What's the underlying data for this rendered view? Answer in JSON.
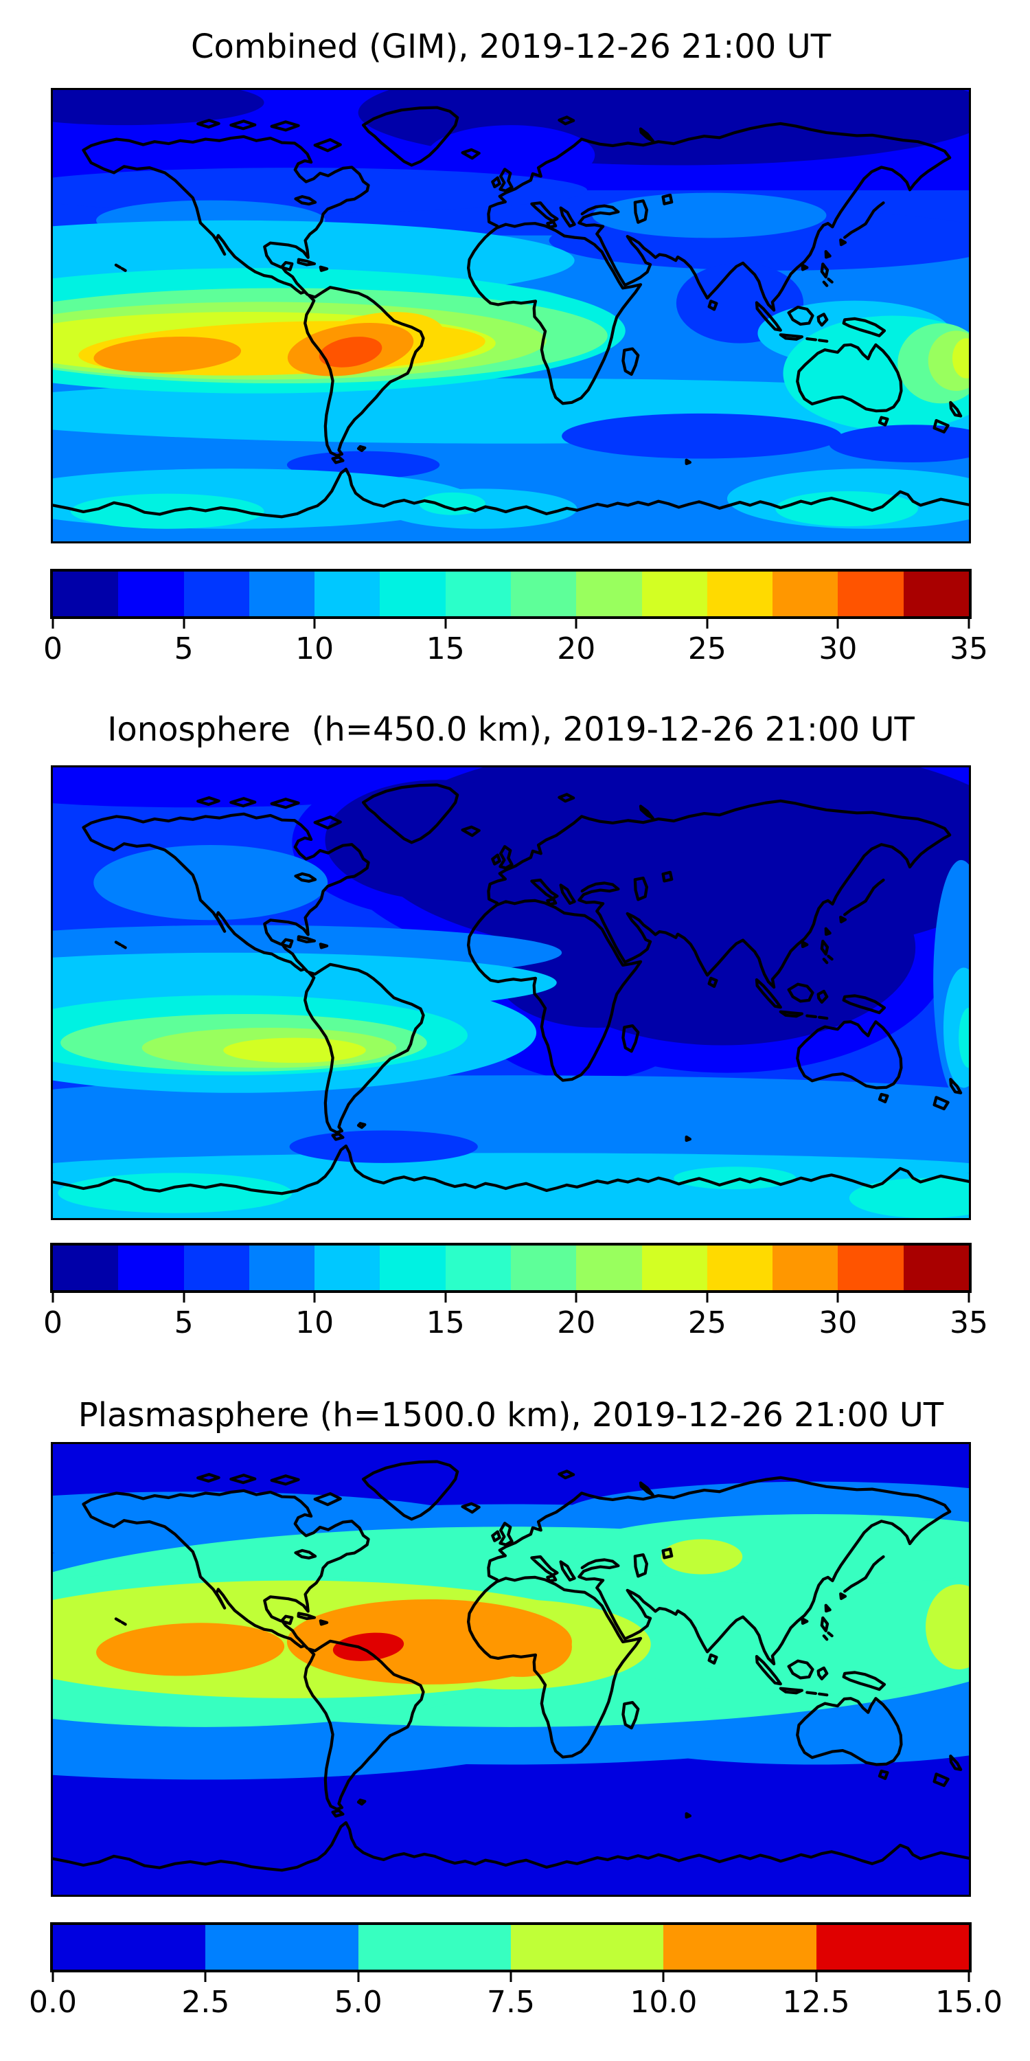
{
  "figure": {
    "background": "#ffffff",
    "colormap": "jet"
  },
  "panels": [
    {
      "id": "combined",
      "title": "Combined (GIM), 2019-12-26 21:00 UT",
      "colorbar": {
        "min": 0,
        "max": 35,
        "n_bands": 14,
        "tick_values": [
          0,
          5,
          10,
          15,
          20,
          25,
          30,
          35
        ],
        "tick_labels": [
          "0",
          "5",
          "10",
          "15",
          "20",
          "25",
          "30",
          "35"
        ],
        "band_colors": [
          "#0000a9",
          "#0000fc",
          "#0037ff",
          "#0080ff",
          "#00c8ff",
          "#00f2e2",
          "#2bffc9",
          "#5eff99",
          "#99ff5e",
          "#d3ff23",
          "#ffda00",
          "#ff9700",
          "#ff5400",
          "#a90000"
        ]
      }
    },
    {
      "id": "ionosphere",
      "title": "Ionosphere  (h=450.0 km), 2019-12-26 21:00 UT",
      "colorbar": {
        "min": 0,
        "max": 35,
        "n_bands": 14,
        "tick_values": [
          0,
          5,
          10,
          15,
          20,
          25,
          30,
          35
        ],
        "tick_labels": [
          "0",
          "5",
          "10",
          "15",
          "20",
          "25",
          "30",
          "35"
        ],
        "band_colors": [
          "#0000a9",
          "#0000fc",
          "#0037ff",
          "#0080ff",
          "#00c8ff",
          "#00f2e2",
          "#2bffc9",
          "#5eff99",
          "#99ff5e",
          "#d3ff23",
          "#ffda00",
          "#ff9700",
          "#ff5400",
          "#a90000"
        ]
      }
    },
    {
      "id": "plasmasphere",
      "title": "Plasmasphere (h=1500.0 km), 2019-12-26 21:00 UT",
      "colorbar": {
        "min": 0,
        "max": 15,
        "n_bands": 6,
        "tick_values": [
          0,
          2.5,
          5,
          7.5,
          10,
          12.5,
          15
        ],
        "tick_labels": [
          "0.0",
          "2.5",
          "5.0",
          "7.5",
          "10.0",
          "12.5",
          "15.0"
        ],
        "band_colors": [
          "#0000e0",
          "#0080ff",
          "#37ffc0",
          "#c0ff37",
          "#ff9700",
          "#e00000"
        ]
      }
    }
  ],
  "chart_data": [
    {
      "type": "heatmap",
      "title": "Combined (GIM), 2019-12-26 21:00 UT",
      "projection": "equirectangular world map with coastlines",
      "lon_range": [
        -180,
        180
      ],
      "lat_range": [
        -90,
        90
      ],
      "colormap": "jet",
      "value_min": 0,
      "value_max": 35,
      "contour_step": 2.5,
      "colorbar_ticks": [
        0,
        5,
        10,
        15,
        20,
        25,
        30,
        35
      ],
      "features": [
        {
          "name": "equatorial-anomaly-peak",
          "lon": -64,
          "lat": -16,
          "value_range": [
            30,
            32.5
          ]
        },
        {
          "name": "pacific-equatorial-band",
          "lon_range": [
            -170,
            -30
          ],
          "lat_range": [
            -30,
            2
          ],
          "value_range": [
            20,
            30
          ]
        },
        {
          "name": "atlantic-equatorial-enhancement",
          "lon": -8,
          "lat": -6,
          "value_range": [
            15,
            20
          ]
        },
        {
          "name": "west-pacific-enhancement",
          "lon": 172,
          "lat": -18,
          "value_range": [
            15,
            25
          ]
        },
        {
          "name": "arctic-minimum",
          "lat_range": [
            60,
            90
          ],
          "value_range": [
            0,
            5
          ]
        },
        {
          "name": "southern-ocean",
          "lat_range": [
            -65,
            -40
          ],
          "value_range": [
            5,
            10
          ]
        }
      ]
    },
    {
      "type": "heatmap",
      "title": "Ionosphere  (h=450.0 km), 2019-12-26 21:00 UT",
      "projection": "equirectangular world map with coastlines",
      "lon_range": [
        -180,
        180
      ],
      "lat_range": [
        -90,
        90
      ],
      "colormap": "jet",
      "value_min": 0,
      "value_max": 35,
      "contour_step": 2.5,
      "colorbar_ticks": [
        0,
        5,
        10,
        15,
        20,
        25,
        30,
        35
      ],
      "features": [
        {
          "name": "southeast-pacific-peak",
          "lon": -85,
          "lat": -23,
          "value_range": [
            20,
            25
          ]
        },
        {
          "name": "tropical-band",
          "lon_range": [
            -180,
            -20
          ],
          "lat_range": [
            -35,
            -5
          ],
          "value_range": [
            10,
            20
          ]
        },
        {
          "name": "eurasia-africa-minimum",
          "lon_range": [
            -30,
            150
          ],
          "lat_range": [
            -10,
            90
          ],
          "value_range": [
            0,
            2.5
          ]
        },
        {
          "name": "southern-ocean",
          "lat_range": [
            -65,
            -40
          ],
          "value_range": [
            5,
            10
          ]
        }
      ]
    },
    {
      "type": "heatmap",
      "title": "Plasmasphere (h=1500.0 km), 2019-12-26 21:00 UT",
      "projection": "equirectangular world map with coastlines",
      "lon_range": [
        -180,
        180
      ],
      "lat_range": [
        -90,
        90
      ],
      "colormap": "jet",
      "value_min": 0,
      "value_max": 15,
      "contour_step": 2.5,
      "colorbar_ticks": [
        0,
        2.5,
        5,
        7.5,
        10,
        12.5,
        15
      ],
      "features": [
        {
          "name": "south-america-peak",
          "lon": -58,
          "lat": 8,
          "value_range": [
            12.5,
            15
          ]
        },
        {
          "name": "equatorial-orange-belt",
          "lon_range": [
            -75,
            25
          ],
          "lat_range": [
            -10,
            18
          ],
          "value_range": [
            10,
            12.5
          ]
        },
        {
          "name": "east-pacific-lobe",
          "lon_range": [
            -145,
            -90
          ],
          "lat_range": [
            -13,
            3
          ],
          "value_range": [
            10,
            12.5
          ]
        },
        {
          "name": "mid-latitude-band",
          "value_range": [
            5,
            7.5
          ]
        },
        {
          "name": "polar-minimum",
          "value_range": [
            0,
            2.5
          ]
        }
      ]
    }
  ]
}
